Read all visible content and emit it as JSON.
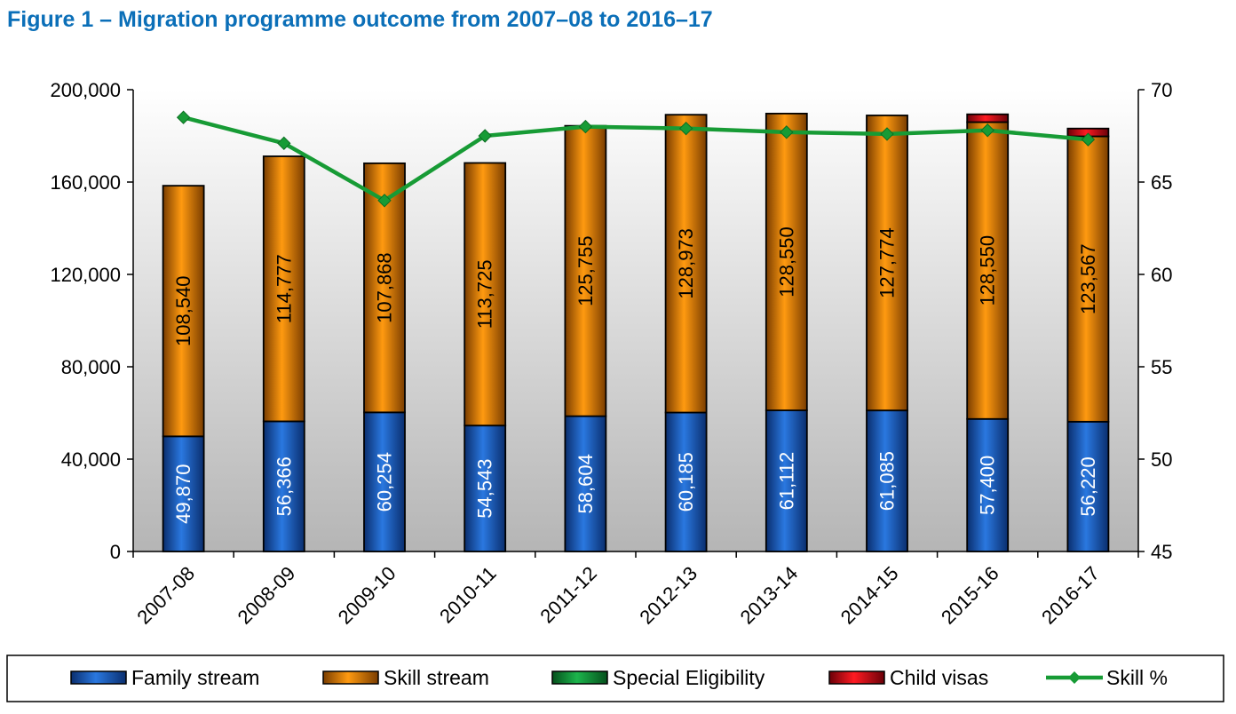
{
  "title": "Figure 1 – Migration programme outcome from 2007–08 to 2016–17",
  "chart_data": {
    "type": "bar",
    "stacked": true,
    "categories": [
      "2007-08",
      "2008-09",
      "2009-10",
      "2010-11",
      "2011-12",
      "2012-13",
      "2013-14",
      "2014-15",
      "2015-16",
      "2016-17"
    ],
    "series": [
      {
        "name": "Family stream",
        "axis": "left",
        "color": "#1f5fc0",
        "values": [
          49870,
          56366,
          60254,
          54543,
          58604,
          60185,
          61112,
          61085,
          57400,
          56220
        ],
        "labels": [
          "49,870",
          "56,366",
          "60,254",
          "54,543",
          "58,604",
          "60,185",
          "61,112",
          "61,085",
          "57,400",
          "56,220"
        ]
      },
      {
        "name": "Skill stream",
        "axis": "left",
        "color": "#f08a00",
        "values": [
          108540,
          114777,
          107868,
          113725,
          125755,
          128973,
          128550,
          127774,
          128550,
          123567
        ],
        "labels": [
          "108,540",
          "114,777",
          "107,868",
          "113,725",
          "125,755",
          "128,973",
          "128,550",
          "127,774",
          "128,550",
          "123,567"
        ]
      },
      {
        "name": "Special Eligibility",
        "axis": "left",
        "color": "#109a3a",
        "values": [
          0,
          0,
          0,
          0,
          0,
          0,
          0,
          0,
          0,
          0
        ]
      },
      {
        "name": "Child visas",
        "axis": "left",
        "color": "#e0101a",
        "values": [
          0,
          0,
          0,
          0,
          0,
          0,
          0,
          0,
          3400,
          3400
        ]
      },
      {
        "name": "Skill %",
        "axis": "right",
        "type": "line",
        "color": "#179b35",
        "values": [
          68.5,
          67.1,
          64.0,
          67.5,
          68.0,
          67.9,
          67.7,
          67.6,
          67.8,
          67.3
        ]
      }
    ],
    "y_left": {
      "ylim": [
        0,
        200000
      ],
      "ticks": [
        0,
        40000,
        80000,
        120000,
        160000,
        200000
      ],
      "tick_labels": [
        "0",
        "40,000",
        "80,000",
        "120,000",
        "160,000",
        "200,000"
      ]
    },
    "y_right": {
      "ylim": [
        45,
        70
      ],
      "ticks": [
        45,
        50,
        55,
        60,
        65,
        70
      ],
      "tick_labels": [
        "45",
        "50",
        "55",
        "60",
        "65",
        "70"
      ]
    },
    "legend": "bottom",
    "plot_background": "gradient white to grey"
  }
}
